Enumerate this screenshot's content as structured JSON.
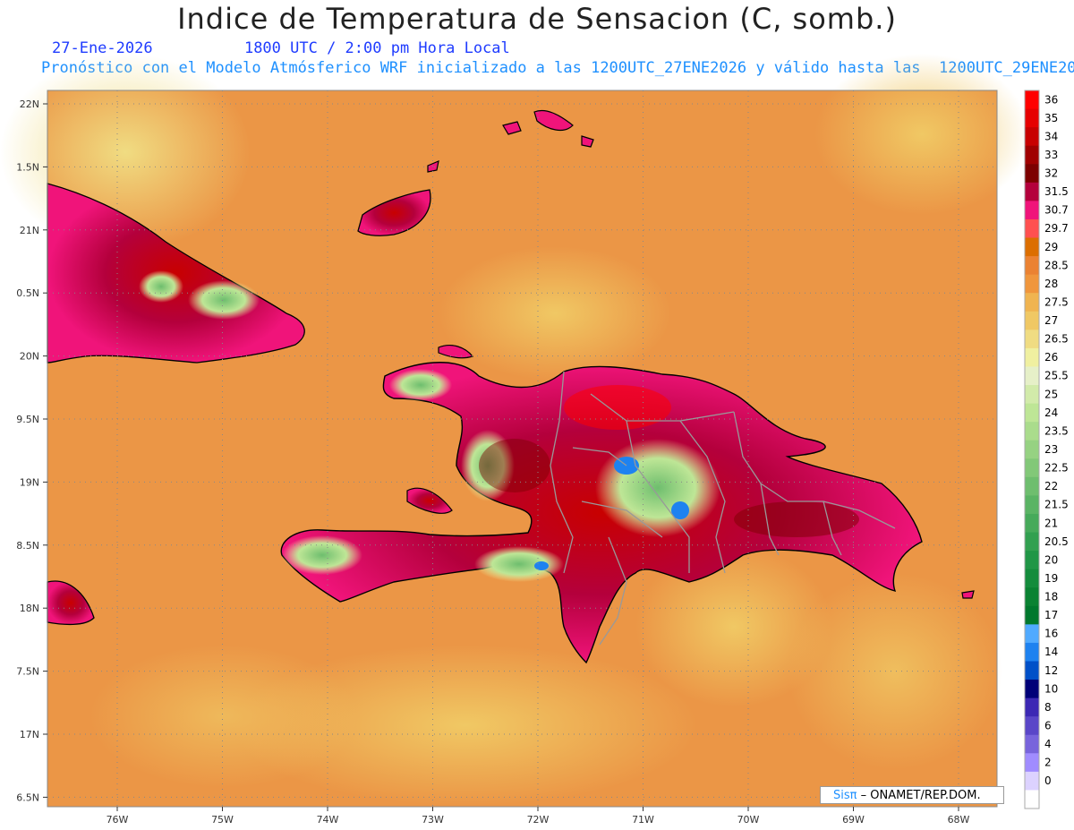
{
  "title": "Indice de Temperatura de Sensacion (C, somb.)",
  "date": "27-Ene-2026",
  "time": "1800 UTC / 2:00 pm Hora Local",
  "model_line": "Pronóstico con el Modelo Atmósferico WRF inicializado a las 1200UTC_27ENE2026 y válido hasta las  1200UTC_29ENE2026",
  "lat_labels": [
    "22N",
    "1.5N",
    "21N",
    "0.5N",
    "20N",
    "9.5N",
    "19N",
    "8.5N",
    "18N",
    "7.5N",
    "17N",
    "6.5N"
  ],
  "lon_labels": [
    "76W",
    "75W",
    "74W",
    "73W",
    "72W",
    "71W",
    "70W",
    "69W",
    "68W"
  ],
  "colorbar": [
    {
      "label": "36",
      "color": "#ff0000"
    },
    {
      "label": "35",
      "color": "#e60000"
    },
    {
      "label": "34",
      "color": "#c80000"
    },
    {
      "label": "33",
      "color": "#a00000"
    },
    {
      "label": "32",
      "color": "#7d0000"
    },
    {
      "label": "31.5",
      "color": "#b4003c"
    },
    {
      "label": "30.7",
      "color": "#f0147a"
    },
    {
      "label": "29.7",
      "color": "#ff5050"
    },
    {
      "label": "29",
      "color": "#dc6e00"
    },
    {
      "label": "28.5",
      "color": "#eb8232"
    },
    {
      "label": "28",
      "color": "#f0963c"
    },
    {
      "label": "27.5",
      "color": "#f0b450"
    },
    {
      "label": "27",
      "color": "#f0c864"
    },
    {
      "label": "26.5",
      "color": "#f0dc82"
    },
    {
      "label": "26",
      "color": "#f0f0a0"
    },
    {
      "label": "25.5",
      "color": "#e6f0c8"
    },
    {
      "label": "25",
      "color": "#d2ebaa"
    },
    {
      "label": "24",
      "color": "#bee696"
    },
    {
      "label": "23.5",
      "color": "#aadc8c"
    },
    {
      "label": "23",
      "color": "#96d282"
    },
    {
      "label": "22.5",
      "color": "#82c878"
    },
    {
      "label": "22",
      "color": "#6ebe6e"
    },
    {
      "label": "21.5",
      "color": "#5ab464"
    },
    {
      "label": "21",
      "color": "#46aa5a"
    },
    {
      "label": "20.5",
      "color": "#32a050"
    },
    {
      "label": "20",
      "color": "#209646"
    },
    {
      "label": "19",
      "color": "#148c3c"
    },
    {
      "label": "18",
      "color": "#0a8232"
    },
    {
      "label": "17",
      "color": "#00782d"
    },
    {
      "label": "16",
      "color": "#50aaff"
    },
    {
      "label": "14",
      "color": "#1e82f0"
    },
    {
      "label": "12",
      "color": "#0050c8"
    },
    {
      "label": "10",
      "color": "#000078"
    },
    {
      "label": "8",
      "color": "#3c28b4"
    },
    {
      "label": "6",
      "color": "#5a46c8"
    },
    {
      "label": "4",
      "color": "#7864dc"
    },
    {
      "label": "2",
      "color": "#a08cff"
    },
    {
      "label": "0",
      "color": "#dcd2ff"
    },
    {
      "label": "",
      "color": "#ffffff"
    }
  ],
  "credit_prefix": "Sisπ",
  "credit_text": "– ONAMET/REP.DOM.",
  "colors": {
    "ocean": "#eb9646",
    "land_hot": "#b4003c",
    "border": "#999999"
  }
}
